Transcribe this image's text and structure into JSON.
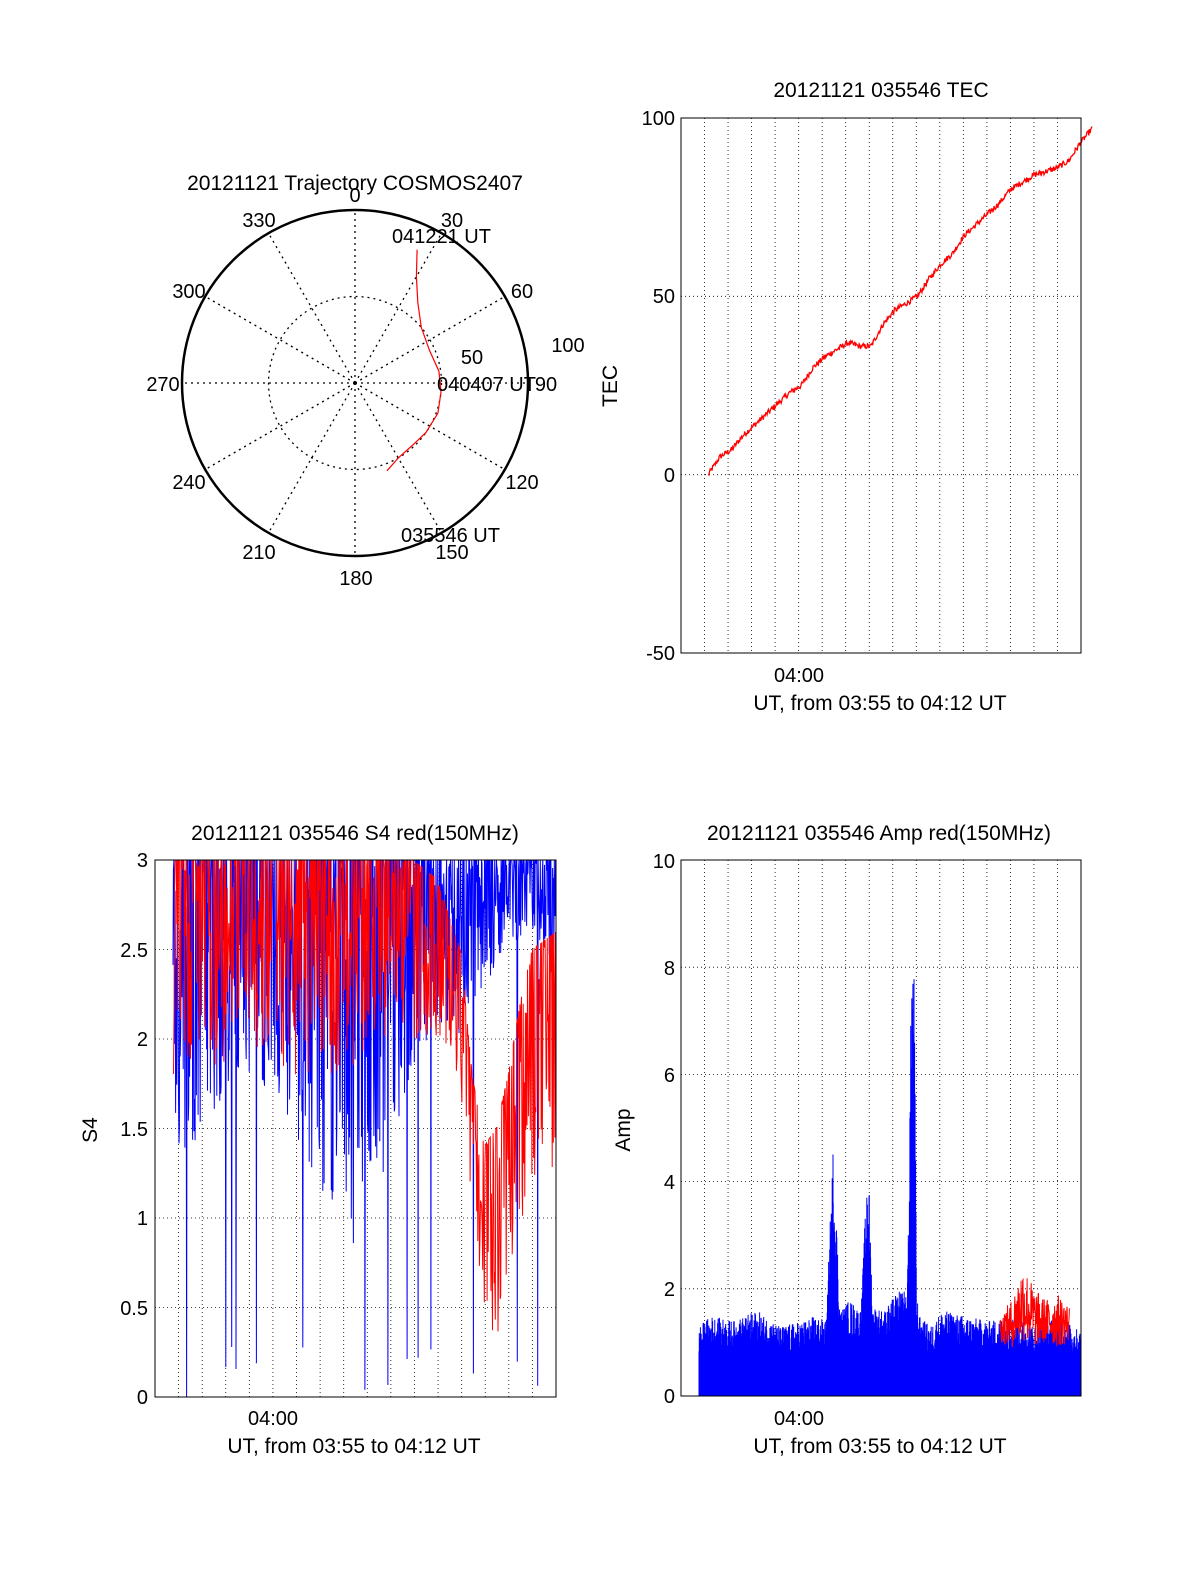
{
  "colors": {
    "tec": "#ff0000",
    "red": "#ff0000",
    "blue": "#0000ff"
  },
  "chart_data": [
    {
      "type": "polar",
      "title": "20121121 Trajectory COSMOS2407",
      "azimuth_labels": [
        "0",
        "30",
        "60",
        "90",
        "120",
        "150",
        "180",
        "210",
        "240",
        "270",
        "300",
        "330"
      ],
      "radial_labels": [
        "50",
        "100"
      ],
      "radial_max": 100,
      "grid": true,
      "trajectory": [
        {
          "az": 160,
          "r": 54
        },
        {
          "az": 150,
          "r": 50
        },
        {
          "az": 138,
          "r": 49
        },
        {
          "az": 125,
          "r": 50
        },
        {
          "az": 110,
          "r": 51
        },
        {
          "az": 96,
          "r": 50
        },
        {
          "az": 82,
          "r": 49
        },
        {
          "az": 66,
          "r": 47
        },
        {
          "az": 50,
          "r": 50
        },
        {
          "az": 38,
          "r": 59
        },
        {
          "az": 30,
          "r": 71
        },
        {
          "az": 25,
          "r": 85
        }
      ],
      "annotations": [
        {
          "text": "041221 UT",
          "az": 25,
          "r": 85
        },
        {
          "text": "040407 UT",
          "az": 96,
          "r": 50
        },
        {
          "text": "035546 UT",
          "az": 160,
          "r": 54
        }
      ]
    },
    {
      "type": "line",
      "title": "20121121 035546 TEC",
      "ylabel": "TEC",
      "xlabel": "UT, from 03:55 to 04:12 UT",
      "x_tick_labels": [
        "04:00"
      ],
      "y_ticks": [
        "-50",
        "0",
        "50",
        "100"
      ],
      "ylim": [
        -50,
        100
      ],
      "xlim_minutes": [
        3.83,
        20.17
      ],
      "grid": true,
      "series": [
        {
          "color": "red",
          "x": [
            0.5,
            1.0,
            1.5,
            2.0,
            2.5,
            3.0,
            3.5,
            4.0,
            4.5,
            5.0,
            5.5,
            6.0,
            6.5,
            7.0,
            7.5,
            8.0,
            8.5,
            9.0,
            9.5,
            10.0,
            10.5,
            11.0,
            11.5,
            12.0,
            12.5,
            13.0,
            13.5,
            14.0,
            14.5,
            15.0,
            15.5,
            16.0,
            16.5,
            17.0
          ],
          "y": [
            0,
            5,
            7,
            11,
            14,
            17,
            20,
            23,
            25,
            30,
            33,
            35,
            37,
            36,
            36,
            42,
            46,
            48,
            50,
            55,
            59,
            62,
            67,
            70,
            73,
            76,
            80,
            82,
            84,
            85,
            86,
            88,
            93,
            97
          ]
        }
      ]
    },
    {
      "type": "line",
      "title": "20121121 035546 S4 red(150MHz)",
      "ylabel": "S4",
      "xlabel": "UT, from 03:55 to 04:12 UT",
      "x_tick_labels": [
        "04:00"
      ],
      "y_ticks": [
        "0",
        "0.5",
        "1",
        "1.5",
        "2",
        "2.5",
        "3"
      ],
      "ylim": [
        0,
        3
      ],
      "grid": true,
      "series": [
        {
          "color": "blue",
          "envelope_x": [
            0.0,
            1.0,
            2.0,
            3.0,
            4.0,
            5.0,
            6.0,
            7.0,
            7.5,
            8.0,
            9.0,
            10.0,
            11.0,
            12.0,
            12.5,
            13.0,
            14.0,
            15.0,
            15.5,
            16.0
          ],
          "min": [
            1.3,
            1.4,
            1.6,
            1.8,
            1.7,
            1.5,
            1.2,
            1.0,
            0.8,
            1.1,
            1.3,
            1.8,
            2.0,
            2.0,
            2.1,
            2.3,
            2.5,
            2.6,
            2.5,
            2.4
          ],
          "max": [
            3,
            3,
            3,
            3,
            3,
            3,
            3,
            3,
            3,
            3,
            3,
            3,
            3,
            3,
            3,
            3,
            3,
            3,
            3,
            3
          ]
        },
        {
          "color": "red",
          "envelope_x": [
            0.0,
            1.0,
            2.0,
            3.0,
            4.0,
            5.0,
            6.0,
            7.0,
            8.0,
            9.0,
            10.0,
            11.0,
            12.0,
            12.5,
            13.0,
            13.5,
            14.0,
            14.5,
            15.0,
            16.0
          ],
          "min": [
            1.7,
            1.8,
            1.8,
            1.9,
            1.9,
            1.8,
            1.8,
            1.8,
            1.9,
            2.0,
            2.0,
            2.0,
            1.7,
            1.0,
            0.5,
            0.3,
            0.5,
            0.9,
            1.2,
            1.3
          ],
          "max": [
            3,
            3,
            3,
            3,
            3,
            3,
            3,
            3,
            3,
            3,
            3,
            2.9,
            2.5,
            1.8,
            1.4,
            1.5,
            1.8,
            2.2,
            2.5,
            2.6
          ]
        }
      ]
    },
    {
      "type": "line",
      "title": "20121121 035546 Amp red(150MHz)",
      "ylabel": "Amp",
      "xlabel": "UT, from 03:55 to 04:12 UT",
      "x_tick_labels": [
        "04:00"
      ],
      "y_ticks": [
        "0",
        "2",
        "4",
        "6",
        "8",
        "10"
      ],
      "ylim": [
        0,
        10
      ],
      "grid": true,
      "series": [
        {
          "color": "blue",
          "envelope_x": [
            0.5,
            1.0,
            2.0,
            3.0,
            4.0,
            5.0,
            5.5,
            6.0,
            6.3,
            6.6,
            7.0,
            7.5,
            7.8,
            8.0,
            8.5,
            9.0,
            9.3,
            9.5,
            9.7,
            9.8,
            9.9,
            10.0,
            10.5,
            11.0,
            12.0,
            13.0,
            14.0,
            15.0,
            16.0,
            17.0
          ],
          "max": [
            1.3,
            1.5,
            1.4,
            1.6,
            1.3,
            1.4,
            1.5,
            1.4,
            4.8,
            1.6,
            1.8,
            1.6,
            4.6,
            1.7,
            1.6,
            1.9,
            2.0,
            2.0,
            8.8,
            7.8,
            2.0,
            1.5,
            1.3,
            1.6,
            1.5,
            1.4,
            1.5,
            1.3,
            1.5,
            1.2
          ]
        },
        {
          "color": "red",
          "envelope_x": [
            13.5,
            14.0,
            14.5,
            15.0,
            15.5,
            16.0,
            16.5
          ],
          "min": [
            1.0,
            0.9,
            1.0,
            0.9,
            1.0,
            0.9,
            1.0
          ],
          "max": [
            1.5,
            1.8,
            2.5,
            2.0,
            1.8,
            1.9,
            1.7
          ]
        }
      ]
    }
  ]
}
